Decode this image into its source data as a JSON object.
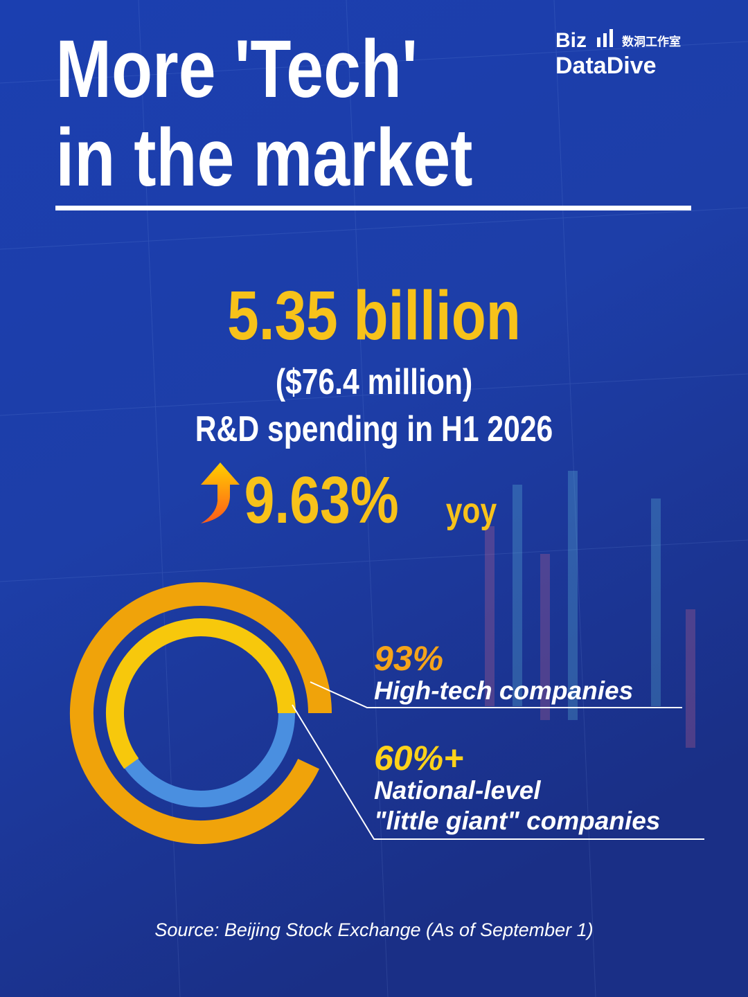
{
  "header": {
    "title_lines": [
      "More 'Tech'",
      "in the market"
    ],
    "logo": {
      "biz": "Biz",
      "chinese": "数洞工作室",
      "name": "DataDive"
    }
  },
  "headline": {
    "amount": "5.35 billion",
    "usd": "($76.4 million)",
    "description": "R&D spending in H1 2026",
    "growth": "9.63%",
    "growth_unit": "yoy"
  },
  "stats": [
    {
      "value": 93,
      "label": "93%",
      "description_lines": [
        "High-tech companies"
      ]
    },
    {
      "value": 60,
      "label": "60%+",
      "description_lines": [
        "National-level",
        "\"little giant\" companies"
      ]
    }
  ],
  "source": "Source: Beijing Stock Exchange (As of September 1)"
}
